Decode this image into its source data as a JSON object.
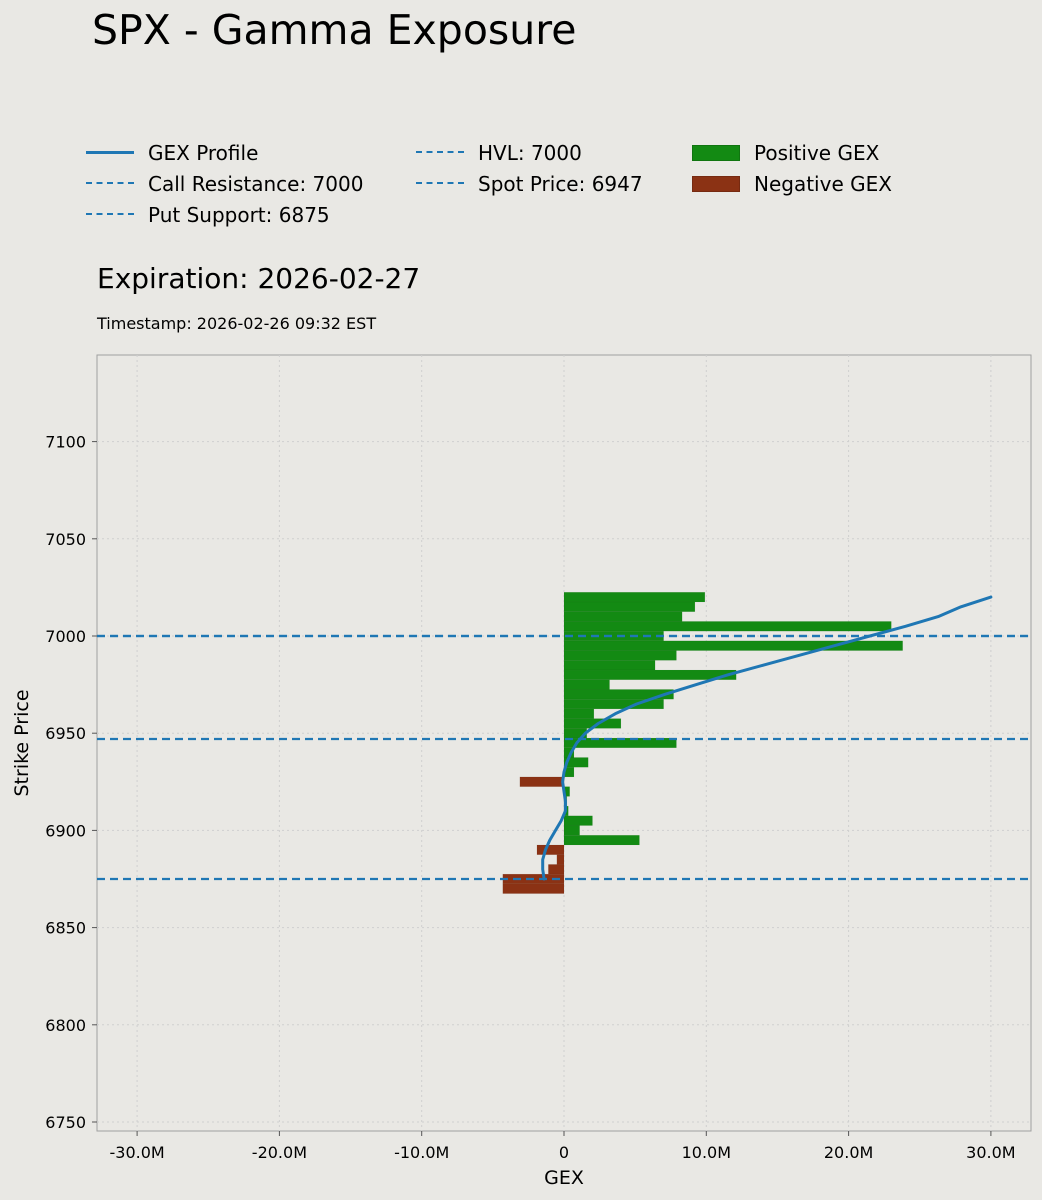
{
  "title": "SPX - Gamma Exposure",
  "subtitle": "Expiration: 2026-02-27",
  "timestamp": "Timestamp: 2026-02-26 09:32 EST",
  "colors": {
    "background": "#e9e8e4",
    "profile": "#1f77b4",
    "positive": "#138a13",
    "negative": "#8b3214",
    "grid": "#cfcfcf"
  },
  "legend": [
    {
      "label": "GEX Profile",
      "kind": "solid"
    },
    {
      "label": "Call Resistance: 7000",
      "kind": "dashed"
    },
    {
      "label": "Put Support: 6875",
      "kind": "dashed"
    },
    {
      "label": "HVL: 7000",
      "kind": "dashed"
    },
    {
      "label": "Spot Price: 6947",
      "kind": "dashed"
    },
    {
      "label": "Positive GEX",
      "kind": "box",
      "color": "#138a13"
    },
    {
      "label": "Negative GEX",
      "kind": "box",
      "color": "#8b3214"
    }
  ],
  "chart_data": {
    "type": "bar",
    "orientation": "horizontal",
    "xlabel": "GEX",
    "ylabel": "Strike Price",
    "xlim": [
      -30000000,
      30000000
    ],
    "ylim": [
      6745,
      7145
    ],
    "xticks": [
      -30000000,
      -20000000,
      -10000000,
      0,
      10000000,
      20000000,
      30000000
    ],
    "xtick_labels": [
      "-30.0M",
      "-20.0M",
      "-10.0M",
      "0",
      "10.0M",
      "20.0M",
      "30.0M"
    ],
    "yticks": [
      6750,
      6800,
      6850,
      6900,
      6950,
      7000,
      7050,
      7100
    ],
    "ytick_labels": [
      "6750",
      "6800",
      "6850",
      "6900",
      "6950",
      "7000",
      "7050",
      "7100"
    ],
    "grid": true,
    "legend_position": "top",
    "bars": [
      {
        "strike": 7020,
        "gex": 9900000
      },
      {
        "strike": 7015,
        "gex": 9200000
      },
      {
        "strike": 7010,
        "gex": 8300000
      },
      {
        "strike": 7005,
        "gex": 23000000
      },
      {
        "strike": 7000,
        "gex": 7000000
      },
      {
        "strike": 6995,
        "gex": 23800000
      },
      {
        "strike": 6990,
        "gex": 7900000
      },
      {
        "strike": 6985,
        "gex": 6400000
      },
      {
        "strike": 6980,
        "gex": 12100000
      },
      {
        "strike": 6975,
        "gex": 3200000
      },
      {
        "strike": 6970,
        "gex": 7700000
      },
      {
        "strike": 6965,
        "gex": 7000000
      },
      {
        "strike": 6960,
        "gex": 2100000
      },
      {
        "strike": 6955,
        "gex": 4000000
      },
      {
        "strike": 6950,
        "gex": 1600000
      },
      {
        "strike": 6945,
        "gex": 7900000
      },
      {
        "strike": 6940,
        "gex": 700000
      },
      {
        "strike": 6935,
        "gex": 1700000
      },
      {
        "strike": 6930,
        "gex": 700000
      },
      {
        "strike": 6925,
        "gex": -3100000
      },
      {
        "strike": 6920,
        "gex": 400000
      },
      {
        "strike": 6915,
        "gex": 200000
      },
      {
        "strike": 6910,
        "gex": 300000
      },
      {
        "strike": 6905,
        "gex": 2000000
      },
      {
        "strike": 6900,
        "gex": 1100000
      },
      {
        "strike": 6895,
        "gex": 5300000
      },
      {
        "strike": 6890,
        "gex": -1900000
      },
      {
        "strike": 6885,
        "gex": -500000
      },
      {
        "strike": 6880,
        "gex": -1100000
      },
      {
        "strike": 6875,
        "gex": -4300000
      },
      {
        "strike": 6870,
        "gex": -4300000
      }
    ],
    "profile": [
      {
        "strike": 6875,
        "gex": -1400000
      },
      {
        "strike": 6880,
        "gex": -1500000
      },
      {
        "strike": 6885,
        "gex": -1500000
      },
      {
        "strike": 6890,
        "gex": -1300000
      },
      {
        "strike": 6895,
        "gex": -1000000
      },
      {
        "strike": 6900,
        "gex": -600000
      },
      {
        "strike": 6905,
        "gex": -200000
      },
      {
        "strike": 6910,
        "gex": 100000
      },
      {
        "strike": 6915,
        "gex": 100000
      },
      {
        "strike": 6920,
        "gex": 0
      },
      {
        "strike": 6925,
        "gex": -100000
      },
      {
        "strike": 6930,
        "gex": 0
      },
      {
        "strike": 6935,
        "gex": 200000
      },
      {
        "strike": 6940,
        "gex": 500000
      },
      {
        "strike": 6945,
        "gex": 900000
      },
      {
        "strike": 6950,
        "gex": 1500000
      },
      {
        "strike": 6955,
        "gex": 2400000
      },
      {
        "strike": 6960,
        "gex": 3600000
      },
      {
        "strike": 6965,
        "gex": 5100000
      },
      {
        "strike": 6970,
        "gex": 7100000
      },
      {
        "strike": 6975,
        "gex": 9300000
      },
      {
        "strike": 6980,
        "gex": 11500000
      },
      {
        "strike": 6985,
        "gex": 14000000
      },
      {
        "strike": 6990,
        "gex": 16500000
      },
      {
        "strike": 6995,
        "gex": 19000000
      },
      {
        "strike": 7000,
        "gex": 21500000
      },
      {
        "strike": 7005,
        "gex": 24000000
      },
      {
        "strike": 7010,
        "gex": 26300000
      },
      {
        "strike": 7015,
        "gex": 27900000
      },
      {
        "strike": 7020,
        "gex": 30000000
      }
    ],
    "hlines": [
      {
        "name": "Call Resistance",
        "value": 7000
      },
      {
        "name": "HVL",
        "value": 7000
      },
      {
        "name": "Spot Price",
        "value": 6947
      },
      {
        "name": "Put Support",
        "value": 6875
      }
    ]
  }
}
